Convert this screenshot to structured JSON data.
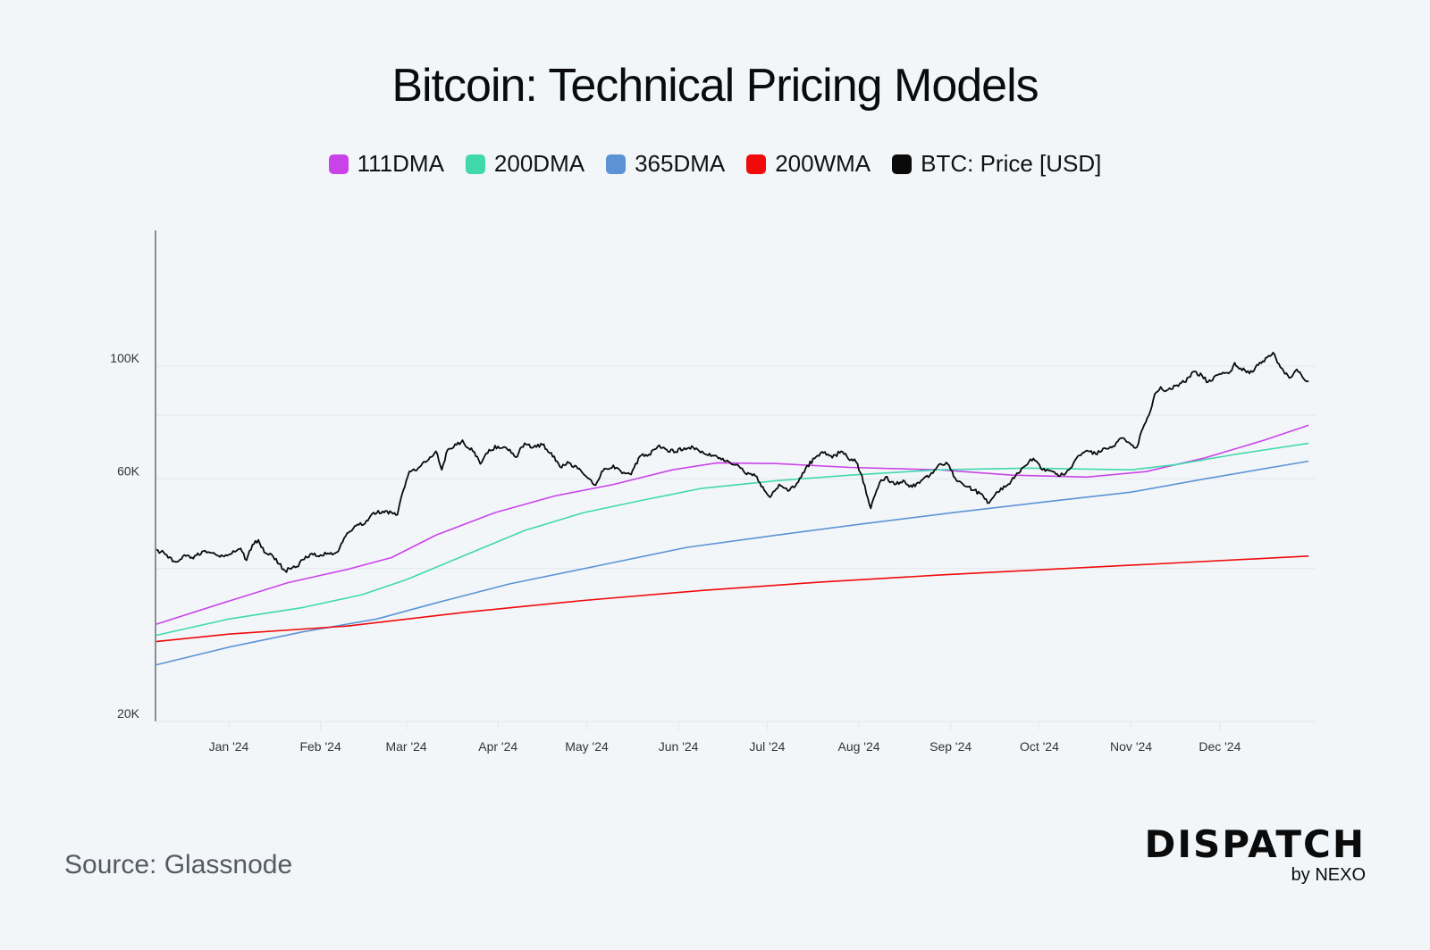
{
  "header": {
    "title": "Bitcoin: Technical Pricing Models"
  },
  "legend": [
    {
      "label": "111DMA",
      "color": "#c944e8"
    },
    {
      "label": "200DMA",
      "color": "#3fd9ab"
    },
    {
      "label": "365DMA",
      "color": "#5b93d6"
    },
    {
      "label": "200WMA",
      "color": "#f00a0a"
    },
    {
      "label": "BTC: Price [USD]",
      "color": "#0a0a0a"
    }
  ],
  "footer": {
    "source": "Source: Glassnode",
    "brand_main": "DISPATCH",
    "brand_sub": "by NEXO"
  },
  "chart_data": {
    "type": "line",
    "title": "Bitcoin: Technical Pricing Models",
    "xlabel": "",
    "ylabel": "",
    "yscale": "log",
    "ylim": [
      20000,
      150000
    ],
    "xlim_days_from_2024_01_01": [
      -25,
      365
    ],
    "yticks": [
      {
        "value": 20000,
        "label": "20K"
      },
      {
        "value": 60000,
        "label": "60K"
      },
      {
        "value": 100000,
        "label": "100K"
      }
    ],
    "ygrid": [
      40000,
      60000,
      80000,
      100000
    ],
    "xticks": [
      {
        "day": 0,
        "label": "Jan '24"
      },
      {
        "day": 31,
        "label": "Feb '24"
      },
      {
        "day": 60,
        "label": "Mar '24"
      },
      {
        "day": 91,
        "label": "Apr '24"
      },
      {
        "day": 121,
        "label": "May '24"
      },
      {
        "day": 152,
        "label": "Jun '24"
      },
      {
        "day": 182,
        "label": "Jul '24"
      },
      {
        "day": 213,
        "label": "Aug '24"
      },
      {
        "day": 244,
        "label": "Sep '24"
      },
      {
        "day": 274,
        "label": "Oct '24"
      },
      {
        "day": 305,
        "label": "Nov '24"
      },
      {
        "day": 335,
        "label": "Dec '24"
      }
    ],
    "grid": true,
    "legend_position": "top-center",
    "series": [
      {
        "name": "111DMA",
        "color": "#c944e8",
        "width": 1.6,
        "points": [
          [
            -25,
            31000
          ],
          [
            0,
            34500
          ],
          [
            20,
            37500
          ],
          [
            40,
            39800
          ],
          [
            55,
            42000
          ],
          [
            70,
            46500
          ],
          [
            90,
            51500
          ],
          [
            110,
            55500
          ],
          [
            130,
            58500
          ],
          [
            150,
            62500
          ],
          [
            165,
            64500
          ],
          [
            185,
            64300
          ],
          [
            210,
            63200
          ],
          [
            240,
            62500
          ],
          [
            265,
            61000
          ],
          [
            290,
            60500
          ],
          [
            310,
            62000
          ],
          [
            330,
            66000
          ],
          [
            350,
            71500
          ],
          [
            365,
            76500
          ]
        ]
      },
      {
        "name": "200DMA",
        "color": "#3fd9ab",
        "width": 1.6,
        "points": [
          [
            -25,
            29500
          ],
          [
            0,
            31800
          ],
          [
            25,
            33500
          ],
          [
            45,
            35500
          ],
          [
            60,
            38000
          ],
          [
            80,
            42500
          ],
          [
            100,
            47500
          ],
          [
            120,
            51500
          ],
          [
            140,
            54500
          ],
          [
            160,
            57500
          ],
          [
            185,
            59500
          ],
          [
            210,
            61000
          ],
          [
            240,
            62500
          ],
          [
            270,
            63000
          ],
          [
            305,
            62500
          ],
          [
            320,
            64000
          ],
          [
            340,
            67000
          ],
          [
            365,
            70500
          ]
        ]
      },
      {
        "name": "365DMA",
        "color": "#5b93d6",
        "width": 1.6,
        "points": [
          [
            -25,
            25800
          ],
          [
            0,
            28000
          ],
          [
            25,
            30000
          ],
          [
            50,
            31800
          ],
          [
            70,
            34200
          ],
          [
            95,
            37300
          ],
          [
            125,
            40500
          ],
          [
            155,
            44000
          ],
          [
            185,
            46500
          ],
          [
            215,
            49000
          ],
          [
            245,
            51500
          ],
          [
            275,
            54000
          ],
          [
            305,
            56500
          ],
          [
            330,
            60000
          ],
          [
            365,
            65000
          ]
        ]
      },
      {
        "name": "200WMA",
        "color": "#f00a0a",
        "width": 1.6,
        "points": [
          [
            -25,
            28700
          ],
          [
            0,
            29700
          ],
          [
            40,
            30800
          ],
          [
            80,
            32800
          ],
          [
            120,
            34600
          ],
          [
            160,
            36200
          ],
          [
            200,
            37600
          ],
          [
            240,
            38800
          ],
          [
            280,
            39900
          ],
          [
            320,
            41000
          ],
          [
            365,
            42300
          ]
        ]
      },
      {
        "name": "BTC: Price [USD]",
        "color": "#0a0a0a",
        "width": 1.8,
        "points": [
          [
            -25,
            43500
          ],
          [
            -22,
            43000
          ],
          [
            -18,
            41200
          ],
          [
            -15,
            42500
          ],
          [
            -12,
            41800
          ],
          [
            -9,
            43200
          ],
          [
            -5,
            42900
          ],
          [
            -2,
            42300
          ],
          [
            1,
            42800
          ],
          [
            4,
            43800
          ],
          [
            6,
            41500
          ],
          [
            8,
            44500
          ],
          [
            10,
            45500
          ],
          [
            12,
            43000
          ],
          [
            13,
            42700
          ],
          [
            15,
            42200
          ],
          [
            17,
            40800
          ],
          [
            19,
            39600
          ],
          [
            21,
            39900
          ],
          [
            23,
            40300
          ],
          [
            25,
            41600
          ],
          [
            28,
            42800
          ],
          [
            31,
            42500
          ],
          [
            34,
            42700
          ],
          [
            37,
            43200
          ],
          [
            40,
            46900
          ],
          [
            43,
            48500
          ],
          [
            46,
            49000
          ],
          [
            49,
            51500
          ],
          [
            52,
            51800
          ],
          [
            55,
            51500
          ],
          [
            57,
            51000
          ],
          [
            59,
            57000
          ],
          [
            61,
            62000
          ],
          [
            64,
            63000
          ],
          [
            67,
            65000
          ],
          [
            70,
            68000
          ],
          [
            72,
            62500
          ],
          [
            74,
            68500
          ],
          [
            77,
            70000
          ],
          [
            79,
            71500
          ],
          [
            81,
            69000
          ],
          [
            83,
            67800
          ],
          [
            85,
            64200
          ],
          [
            88,
            68500
          ],
          [
            91,
            69500
          ],
          [
            94,
            68800
          ],
          [
            97,
            66200
          ],
          [
            100,
            70500
          ],
          [
            103,
            69300
          ],
          [
            106,
            70000
          ],
          [
            109,
            67500
          ],
          [
            112,
            63300
          ],
          [
            115,
            64500
          ],
          [
            118,
            62800
          ],
          [
            121,
            60500
          ],
          [
            124,
            58300
          ],
          [
            126,
            62000
          ],
          [
            130,
            63800
          ],
          [
            133,
            61500
          ],
          [
            136,
            61200
          ],
          [
            139,
            66500
          ],
          [
            142,
            67000
          ],
          [
            145,
            69500
          ],
          [
            148,
            68500
          ],
          [
            151,
            67800
          ],
          [
            154,
            69000
          ],
          [
            157,
            69200
          ],
          [
            160,
            68000
          ],
          [
            163,
            66500
          ],
          [
            166,
            66000
          ],
          [
            169,
            64800
          ],
          [
            172,
            64000
          ],
          [
            175,
            61200
          ],
          [
            178,
            60800
          ],
          [
            181,
            57000
          ],
          [
            183,
            55200
          ],
          [
            186,
            58500
          ],
          [
            189,
            56800
          ],
          [
            192,
            58800
          ],
          [
            195,
            63000
          ],
          [
            198,
            65800
          ],
          [
            201,
            67500
          ],
          [
            204,
            66000
          ],
          [
            207,
            68000
          ],
          [
            209,
            66300
          ],
          [
            212,
            64800
          ],
          [
            214,
            61000
          ],
          [
            216,
            55000
          ],
          [
            217,
            52500
          ],
          [
            218,
            55000
          ],
          [
            220,
            59000
          ],
          [
            222,
            60500
          ],
          [
            225,
            58500
          ],
          [
            228,
            59600
          ],
          [
            231,
            57800
          ],
          [
            234,
            59500
          ],
          [
            237,
            61000
          ],
          [
            240,
            64000
          ],
          [
            243,
            64200
          ],
          [
            246,
            59500
          ],
          [
            249,
            58000
          ],
          [
            252,
            57000
          ],
          [
            255,
            55500
          ],
          [
            257,
            53800
          ],
          [
            260,
            56500
          ],
          [
            263,
            58200
          ],
          [
            266,
            61000
          ],
          [
            269,
            63500
          ],
          [
            272,
            65800
          ],
          [
            275,
            62500
          ],
          [
            278,
            62200
          ],
          [
            281,
            60800
          ],
          [
            284,
            62500
          ],
          [
            287,
            66500
          ],
          [
            290,
            68200
          ],
          [
            293,
            67200
          ],
          [
            296,
            69000
          ],
          [
            299,
            69600
          ],
          [
            302,
            72200
          ],
          [
            305,
            70000
          ],
          [
            307,
            69300
          ],
          [
            309,
            75500
          ],
          [
            311,
            80000
          ],
          [
            313,
            88000
          ],
          [
            315,
            91000
          ],
          [
            317,
            89500
          ],
          [
            320,
            91500
          ],
          [
            323,
            93000
          ],
          [
            326,
            97500
          ],
          [
            329,
            95800
          ],
          [
            331,
            93000
          ],
          [
            334,
            96000
          ],
          [
            337,
            97000
          ],
          [
            339,
            98000
          ],
          [
            340,
            101500
          ],
          [
            342,
            99000
          ],
          [
            345,
            96700
          ],
          [
            348,
            100500
          ],
          [
            351,
            104000
          ],
          [
            353,
            106300
          ],
          [
            355,
            101000
          ],
          [
            357,
            96500
          ],
          [
            359,
            95000
          ],
          [
            361,
            98500
          ],
          [
            363,
            95000
          ],
          [
            365,
            93500
          ]
        ]
      }
    ]
  }
}
